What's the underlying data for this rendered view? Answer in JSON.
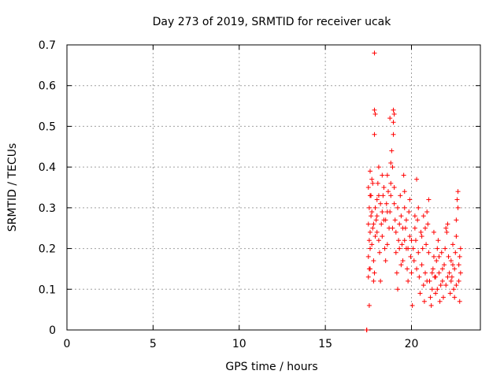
{
  "chart_data": {
    "type": "scatter",
    "title": "Day 273 of 2019, SRMTID for receiver ucak",
    "xlabel": "GPS time / hours",
    "ylabel": "SRMTID / TECUs",
    "xlim": [
      0,
      24
    ],
    "ylim": [
      0,
      0.7
    ],
    "xticks": [
      0,
      5,
      10,
      15,
      20
    ],
    "xtick_labels": [
      "0",
      "5",
      "10",
      "15",
      "20"
    ],
    "yticks": [
      0,
      0.1,
      0.2,
      0.3,
      0.4,
      0.5,
      0.6,
      0.7
    ],
    "ytick_labels": [
      "0",
      "0.1",
      "0.2",
      "0.3",
      "0.4",
      "0.5",
      "0.6",
      "0.7"
    ],
    "grid": true,
    "marker": "plus",
    "color": "#ff0000",
    "series": [
      {
        "name": "SRMTID",
        "points": [
          [
            17.4,
            0.0
          ],
          [
            17.4,
            0.0
          ],
          [
            17.4,
            0.0
          ],
          [
            17.55,
            0.06
          ],
          [
            17.5,
            0.13
          ],
          [
            17.55,
            0.15
          ],
          [
            17.5,
            0.18
          ],
          [
            17.6,
            0.2
          ],
          [
            17.55,
            0.22
          ],
          [
            17.6,
            0.24
          ],
          [
            17.5,
            0.26
          ],
          [
            17.65,
            0.28
          ],
          [
            17.55,
            0.3
          ],
          [
            17.6,
            0.33
          ],
          [
            17.5,
            0.35
          ],
          [
            17.7,
            0.37
          ],
          [
            17.6,
            0.39
          ],
          [
            17.75,
            0.25
          ],
          [
            17.7,
            0.21
          ],
          [
            17.8,
            0.17
          ],
          [
            17.85,
            0.14
          ],
          [
            17.8,
            0.12
          ],
          [
            17.9,
            0.23
          ],
          [
            17.85,
            0.68
          ],
          [
            17.85,
            0.54
          ],
          [
            17.9,
            0.53
          ],
          [
            17.85,
            0.48
          ],
          [
            17.9,
            0.3
          ],
          [
            17.95,
            0.27
          ],
          [
            18.0,
            0.32
          ],
          [
            18.05,
            0.36
          ],
          [
            18.1,
            0.4
          ],
          [
            18.0,
            0.24
          ],
          [
            18.1,
            0.22
          ],
          [
            18.15,
            0.19
          ],
          [
            18.2,
            0.12
          ],
          [
            18.25,
            0.26
          ],
          [
            18.3,
            0.29
          ],
          [
            18.35,
            0.33
          ],
          [
            18.4,
            0.35
          ],
          [
            18.3,
            0.23
          ],
          [
            18.45,
            0.2
          ],
          [
            18.5,
            0.27
          ],
          [
            18.55,
            0.31
          ],
          [
            18.6,
            0.38
          ],
          [
            18.65,
            0.34
          ],
          [
            18.5,
            0.17
          ],
          [
            18.6,
            0.21
          ],
          [
            18.7,
            0.25
          ],
          [
            18.75,
            0.29
          ],
          [
            18.8,
            0.41
          ],
          [
            18.85,
            0.44
          ],
          [
            18.9,
            0.4
          ],
          [
            18.8,
            0.36
          ],
          [
            18.95,
            0.48
          ],
          [
            18.95,
            0.51
          ],
          [
            19.0,
            0.53
          ],
          [
            18.95,
            0.54
          ],
          [
            18.75,
            0.52
          ],
          [
            19.0,
            0.31
          ],
          [
            19.05,
            0.27
          ],
          [
            19.1,
            0.24
          ],
          [
            19.1,
            0.19
          ],
          [
            19.15,
            0.14
          ],
          [
            19.2,
            0.1
          ],
          [
            19.25,
            0.22
          ],
          [
            19.3,
            0.26
          ],
          [
            19.35,
            0.33
          ],
          [
            19.4,
            0.28
          ],
          [
            19.45,
            0.21
          ],
          [
            19.5,
            0.17
          ],
          [
            19.55,
            0.38
          ],
          [
            19.6,
            0.34
          ],
          [
            19.6,
            0.3
          ],
          [
            19.65,
            0.25
          ],
          [
            19.7,
            0.2
          ],
          [
            19.75,
            0.15
          ],
          [
            19.8,
            0.12
          ],
          [
            19.85,
            0.29
          ],
          [
            19.9,
            0.23
          ],
          [
            19.95,
            0.18
          ],
          [
            20.0,
            0.14
          ],
          [
            20.05,
            0.06
          ],
          [
            20.1,
            0.2
          ],
          [
            20.15,
            0.17
          ],
          [
            20.2,
            0.25
          ],
          [
            20.25,
            0.22
          ],
          [
            20.3,
            0.37
          ],
          [
            20.35,
            0.27
          ],
          [
            20.4,
            0.19
          ],
          [
            20.45,
            0.13
          ],
          [
            20.5,
            0.09
          ],
          [
            20.55,
            0.24
          ],
          [
            20.6,
            0.16
          ],
          [
            20.65,
            0.2
          ],
          [
            20.7,
            0.11
          ],
          [
            20.75,
            0.07
          ],
          [
            20.8,
            0.14
          ],
          [
            20.85,
            0.21
          ],
          [
            20.9,
            0.29
          ],
          [
            20.95,
            0.26
          ],
          [
            21.0,
            0.32
          ],
          [
            21.05,
            0.12
          ],
          [
            21.1,
            0.08
          ],
          [
            21.15,
            0.06
          ],
          [
            21.2,
            0.1
          ],
          [
            21.25,
            0.15
          ],
          [
            21.3,
            0.18
          ],
          [
            21.35,
            0.13
          ],
          [
            21.4,
            0.09
          ],
          [
            21.45,
            0.17
          ],
          [
            21.5,
            0.2
          ],
          [
            21.55,
            0.22
          ],
          [
            21.6,
            0.14
          ],
          [
            21.65,
            0.07
          ],
          [
            21.7,
            0.11
          ],
          [
            21.75,
            0.19
          ],
          [
            21.8,
            0.12
          ],
          [
            21.85,
            0.08
          ],
          [
            21.9,
            0.16
          ],
          [
            21.95,
            0.2
          ],
          [
            22.0,
            0.25
          ],
          [
            22.05,
            0.24
          ],
          [
            22.1,
            0.26
          ],
          [
            22.15,
            0.18
          ],
          [
            22.2,
            0.14
          ],
          [
            22.25,
            0.09
          ],
          [
            22.3,
            0.17
          ],
          [
            22.35,
            0.13
          ],
          [
            22.4,
            0.21
          ],
          [
            22.45,
            0.1
          ],
          [
            22.5,
            0.15
          ],
          [
            22.55,
            0.19
          ],
          [
            22.6,
            0.27
          ],
          [
            22.65,
            0.32
          ],
          [
            22.7,
            0.34
          ],
          [
            22.7,
            0.3
          ],
          [
            22.75,
            0.16
          ],
          [
            22.75,
            0.12
          ],
          [
            22.8,
            0.18
          ],
          [
            22.8,
            0.07
          ],
          [
            22.85,
            0.14
          ],
          [
            22.85,
            0.2
          ],
          [
            22.6,
            0.23
          ],
          [
            22.5,
            0.08
          ],
          [
            22.3,
            0.12
          ],
          [
            22.0,
            0.11
          ],
          [
            21.8,
            0.15
          ],
          [
            21.6,
            0.18
          ],
          [
            21.4,
            0.13
          ],
          [
            21.2,
            0.14
          ],
          [
            21.0,
            0.19
          ],
          [
            20.8,
            0.25
          ],
          [
            20.6,
            0.23
          ],
          [
            20.4,
            0.3
          ],
          [
            20.2,
            0.28
          ],
          [
            20.0,
            0.22
          ],
          [
            19.8,
            0.2
          ],
          [
            19.6,
            0.22
          ],
          [
            19.4,
            0.16
          ],
          [
            19.2,
            0.3
          ],
          [
            19.0,
            0.35
          ],
          [
            18.8,
            0.33
          ],
          [
            18.6,
            0.29
          ],
          [
            18.4,
            0.27
          ],
          [
            18.2,
            0.31
          ],
          [
            18.0,
            0.28
          ],
          [
            17.8,
            0.26
          ],
          [
            17.7,
            0.29
          ],
          [
            17.65,
            0.33
          ],
          [
            17.75,
            0.36
          ],
          [
            17.6,
            0.15
          ],
          [
            19.3,
            0.2
          ],
          [
            19.7,
            0.27
          ],
          [
            20.3,
            0.15
          ],
          [
            20.9,
            0.12
          ],
          [
            21.5,
            0.1
          ],
          [
            22.1,
            0.13
          ],
          [
            22.4,
            0.16
          ],
          [
            22.6,
            0.11
          ],
          [
            21.3,
            0.24
          ],
          [
            20.7,
            0.28
          ],
          [
            19.9,
            0.32
          ],
          [
            19.5,
            0.25
          ],
          [
            18.9,
            0.25
          ],
          [
            18.3,
            0.38
          ],
          [
            18.1,
            0.33
          ]
        ]
      }
    ]
  }
}
